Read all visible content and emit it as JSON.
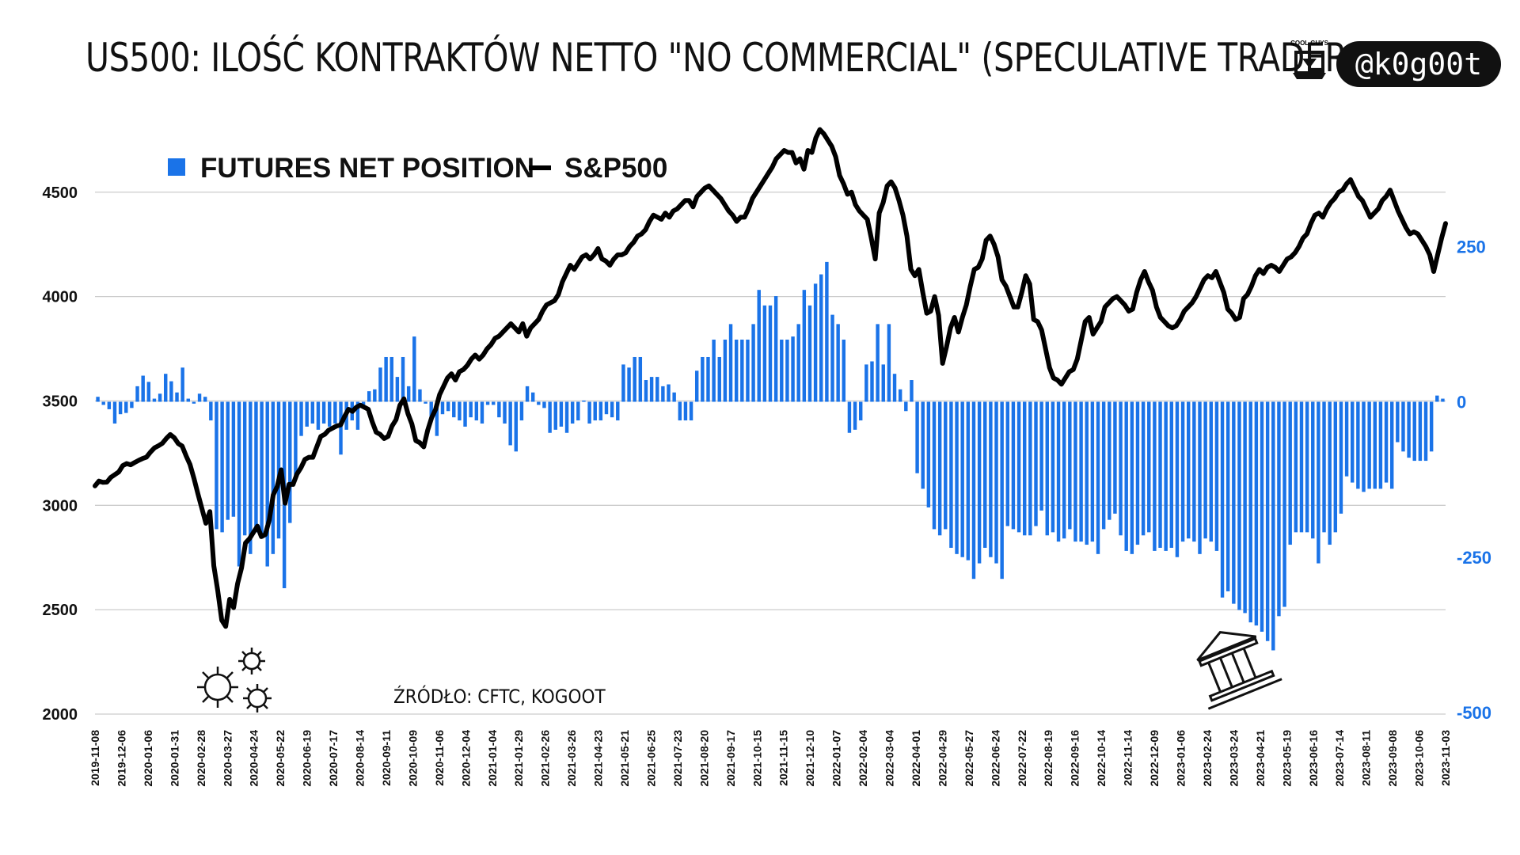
{
  "header": {
    "title": "US500: ILOŚĆ KONTRAKTÓW NETTO \"NO COMMERCIAL\" (SPECULATIVE TRADERS)",
    "brand_small": "COOL GUYS",
    "handle": "@k0g00t"
  },
  "annotations": {
    "source": "ŹRÓDŁO: CFTC, KOGOOT"
  },
  "colors": {
    "bars": "#1a73e8",
    "line": "#000000",
    "grid": "#cccccc",
    "right_axis": "#1a73e8"
  },
  "chart_data": {
    "type": "bar+line",
    "legend": [
      {
        "label": "FUTURES NET POSITION",
        "kind": "bar",
        "color": "#1a73e8"
      },
      {
        "label": "S&P500",
        "kind": "line",
        "color": "#000000"
      }
    ],
    "legend_position": "top-left",
    "grid": true,
    "y_left": {
      "ticks": [
        "2000",
        "2500",
        "3000",
        "3500",
        "4000",
        "4500"
      ],
      "range": [
        2000,
        4800
      ]
    },
    "y_right": {
      "ticks": [
        "-500",
        "-250",
        "0",
        "250"
      ],
      "range": [
        -500,
        380
      ]
    },
    "x_tick_labels": [
      "2019-11-08",
      "2019-12-06",
      "2020-01-06",
      "2020-01-31",
      "2020-02-28",
      "2020-03-27",
      "2020-04-24",
      "2020-05-22",
      "2020-06-19",
      "2020-07-17",
      "2020-08-14",
      "2020-09-11",
      "2020-10-09",
      "2020-11-06",
      "2020-12-04",
      "2021-01-04",
      "2021-01-29",
      "2021-02-26",
      "2021-03-26",
      "2021-04-23",
      "2021-05-21",
      "2021-06-25",
      "2021-07-23",
      "2021-08-20",
      "2021-09-17",
      "2021-10-15",
      "2021-11-15",
      "2021-12-10",
      "2022-01-07",
      "2022-02-04",
      "2022-03-04",
      "2022-04-01",
      "2022-04-29",
      "2022-05-27",
      "2022-06-24",
      "2022-07-22",
      "2022-08-19",
      "2022-09-16",
      "2022-10-14",
      "2022-11-14",
      "2022-12-09",
      "2023-01-06",
      "2023-02-24",
      "2023-03-24",
      "2023-04-21",
      "2023-05-19",
      "2023-06-16",
      "2023-07-14",
      "2023-08-11",
      "2023-09-08",
      "2023-10-06",
      "2023-11-03"
    ],
    "series": [
      {
        "name": "FUTURES NET POSITION",
        "axis": "right",
        "values": [
          8,
          -5,
          -12,
          -35,
          -20,
          -18,
          -10,
          25,
          42,
          32,
          5,
          13,
          45,
          33,
          15,
          55,
          5,
          -3,
          13,
          8,
          -30,
          -205,
          -210,
          -190,
          -185,
          -265,
          -215,
          -245,
          -210,
          -220,
          -265,
          -245,
          -220,
          -300,
          -195,
          -120,
          -55,
          -40,
          -35,
          -45,
          -35,
          -40,
          -35,
          -85,
          -45,
          -30,
          -45,
          -5,
          17,
          20,
          55,
          72,
          72,
          40,
          72,
          25,
          105,
          20,
          -3,
          -25,
          -55,
          -20,
          -15,
          -25,
          -30,
          -40,
          -25,
          -30,
          -35,
          -5,
          -5,
          -25,
          -35,
          -70,
          -80,
          -30,
          25,
          15,
          -5,
          -10,
          -50,
          -45,
          -40,
          -50,
          -35,
          -30,
          2,
          -35,
          -30,
          -30,
          -20,
          -25,
          -30,
          60,
          55,
          72,
          72,
          35,
          40,
          40,
          25,
          28,
          15,
          -30,
          -30,
          -30,
          50,
          72,
          72,
          100,
          72,
          100,
          125,
          100,
          100,
          100,
          125,
          180,
          155,
          155,
          170,
          100,
          100,
          105,
          125,
          180,
          155,
          190,
          205,
          225,
          140,
          125,
          100,
          -50,
          -45,
          -30,
          60,
          65,
          125,
          60,
          125,
          45,
          20,
          -15,
          35,
          -115,
          -140,
          -170,
          -205,
          -215,
          -205,
          -235,
          -245,
          -250,
          -255,
          -285,
          -260,
          -235,
          -250,
          -260,
          -285,
          -200,
          -205,
          -210,
          -215,
          -215,
          -200,
          -175,
          -215,
          -210,
          -225,
          -220,
          -205,
          -225,
          -225,
          -230,
          -225,
          -245,
          -205,
          -190,
          -180,
          -215,
          -240,
          -245,
          -230,
          -215,
          -210,
          -240,
          -235,
          -240,
          -235,
          -250,
          -225,
          -220,
          -225,
          -245,
          -220,
          -225,
          -240,
          -315,
          -305,
          -325,
          -335,
          -340,
          -355,
          -360,
          -370,
          -385,
          -400,
          -345,
          -330,
          -230,
          -210,
          -210,
          -210,
          -220,
          -260,
          -210,
          -230,
          -210,
          -180,
          -120,
          -130,
          -140,
          -145,
          -140,
          -140,
          -140,
          -130,
          -140,
          -65,
          -80,
          -90,
          -95,
          -95,
          -95,
          -80,
          10,
          5
        ]
      },
      {
        "name": "S&P500",
        "axis": "left",
        "values": [
          3093,
          3116,
          3110,
          3111,
          3134,
          3147,
          3160,
          3190,
          3200,
          3194,
          3205,
          3215,
          3224,
          3231,
          3255,
          3275,
          3285,
          3297,
          3320,
          3339,
          3324,
          3296,
          3284,
          3237,
          3195,
          3128,
          3054,
          2984,
          2914,
          2970,
          2710,
          2590,
          2450,
          2420,
          2550,
          2510,
          2625,
          2700,
          2820,
          2840,
          2870,
          2900,
          2850,
          2860,
          2930,
          3050,
          3090,
          3170,
          3010,
          3100,
          3100,
          3150,
          3180,
          3220,
          3230,
          3230,
          3280,
          3330,
          3340,
          3360,
          3370,
          3380,
          3385,
          3425,
          3460,
          3450,
          3470,
          3480,
          3470,
          3460,
          3400,
          3350,
          3340,
          3320,
          3330,
          3380,
          3410,
          3480,
          3510,
          3440,
          3390,
          3310,
          3300,
          3280,
          3360,
          3420,
          3460,
          3530,
          3570,
          3610,
          3630,
          3600,
          3640,
          3650,
          3670,
          3700,
          3720,
          3700,
          3720,
          3750,
          3770,
          3800,
          3810,
          3830,
          3850,
          3870,
          3850,
          3830,
          3870,
          3810,
          3850,
          3870,
          3890,
          3930,
          3960,
          3970,
          3980,
          4010,
          4070,
          4110,
          4150,
          4130,
          4160,
          4190,
          4200,
          4180,
          4200,
          4230,
          4180,
          4170,
          4150,
          4180,
          4200,
          4200,
          4210,
          4240,
          4260,
          4290,
          4300,
          4320,
          4360,
          4390,
          4380,
          4370,
          4400,
          4380,
          4410,
          4420,
          4440,
          4460,
          4460,
          4430,
          4480,
          4500,
          4520,
          4530,
          4510,
          4490,
          4470,
          4440,
          4410,
          4390,
          4360,
          4380,
          4380,
          4420,
          4470,
          4500,
          4530,
          4560,
          4590,
          4620,
          4660,
          4680,
          4700,
          4690,
          4690,
          4640,
          4660,
          4610,
          4700,
          4690,
          4760,
          4800,
          4780,
          4750,
          4720,
          4670,
          4580,
          4540,
          4490,
          4500,
          4440,
          4410,
          4390,
          4370,
          4280,
          4180,
          4400,
          4450,
          4530,
          4550,
          4520,
          4460,
          4390,
          4290,
          4130,
          4100,
          4130,
          4020,
          3920,
          3930,
          4000,
          3910,
          3680,
          3760,
          3850,
          3900,
          3830,
          3900,
          3960,
          4050,
          4130,
          4140,
          4180,
          4270,
          4290,
          4250,
          4190,
          4080,
          4050,
          4000,
          3950,
          3950,
          4020,
          4100,
          4060,
          3890,
          3880,
          3840,
          3750,
          3660,
          3610,
          3600,
          3580,
          3610,
          3640,
          3650,
          3700,
          3790,
          3880,
          3900,
          3820,
          3850,
          3880,
          3950,
          3970,
          3990,
          4000,
          3980,
          3960,
          3930,
          3940,
          4020,
          4080,
          4120,
          4070,
          4030,
          3950,
          3900,
          3880,
          3860,
          3850,
          3860,
          3890,
          3930,
          3950,
          3970,
          4000,
          4040,
          4080,
          4100,
          4090,
          4120,
          4070,
          4020,
          3940,
          3920,
          3890,
          3900,
          3990,
          4010,
          4050,
          4100,
          4130,
          4110,
          4140,
          4150,
          4140,
          4120,
          4150,
          4180,
          4190,
          4210,
          4240,
          4280,
          4300,
          4350,
          4390,
          4400,
          4380,
          4420,
          4450,
          4470,
          4500,
          4510,
          4540,
          4560,
          4520,
          4480,
          4460,
          4420,
          4380,
          4400,
          4420,
          4460,
          4480,
          4510,
          4460,
          4410,
          4370,
          4330,
          4300,
          4310,
          4300,
          4270,
          4240,
          4200,
          4120,
          4200,
          4280,
          4350
        ]
      }
    ]
  }
}
